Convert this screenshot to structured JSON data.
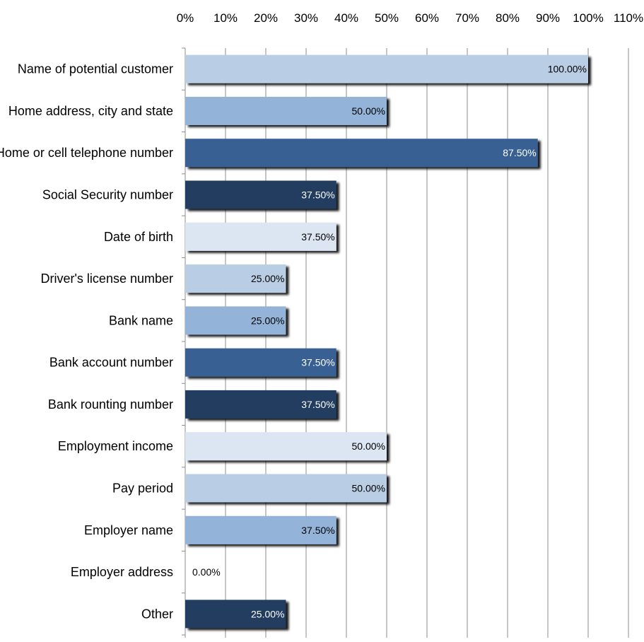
{
  "chart_data": {
    "type": "bar",
    "orientation": "horizontal",
    "categories": [
      "Name of potential customer",
      "Home address, city and state",
      "Home or cell telephone number",
      "Social Security number",
      "Date of birth",
      "Driver's license number",
      "Bank name",
      "Bank account number",
      "Bank rounting number",
      "Employment income",
      "Pay period",
      "Employer name",
      "Employer address",
      "Other"
    ],
    "values": [
      100,
      50,
      87.5,
      37.5,
      37.5,
      25,
      25,
      37.5,
      37.5,
      50,
      50,
      37.5,
      0,
      25
    ],
    "value_labels": [
      "100.00%",
      "50.00%",
      "87.50%",
      "37.50%",
      "37.50%",
      "25.00%",
      "25.00%",
      "37.50%",
      "37.50%",
      "50.00%",
      "50.00%",
      "37.50%",
      "0.00%",
      "25.00%"
    ],
    "bar_colors": [
      "#b9cde4",
      "#93b3d8",
      "#376193",
      "#243e5f",
      "#dce6f2",
      "#b9cde4",
      "#93b3d8",
      "#376193",
      "#243e5f",
      "#dce6f2",
      "#b9cde4",
      "#93b3d8",
      "#376193",
      "#243e5f"
    ],
    "label_colors": [
      "#000000",
      "#000000",
      "#ffffff",
      "#ffffff",
      "#000000",
      "#000000",
      "#000000",
      "#ffffff",
      "#ffffff",
      "#000000",
      "#000000",
      "#000000",
      "#000000",
      "#ffffff"
    ],
    "x_ticks": [
      "0%",
      "10%",
      "20%",
      "30%",
      "40%",
      "50%",
      "60%",
      "70%",
      "80%",
      "90%",
      "100%",
      "110%"
    ],
    "xlim": [
      0,
      110
    ],
    "x_axis_position": "top",
    "grid": true,
    "legend": "none",
    "title": "",
    "xlabel": "",
    "ylabel": ""
  }
}
